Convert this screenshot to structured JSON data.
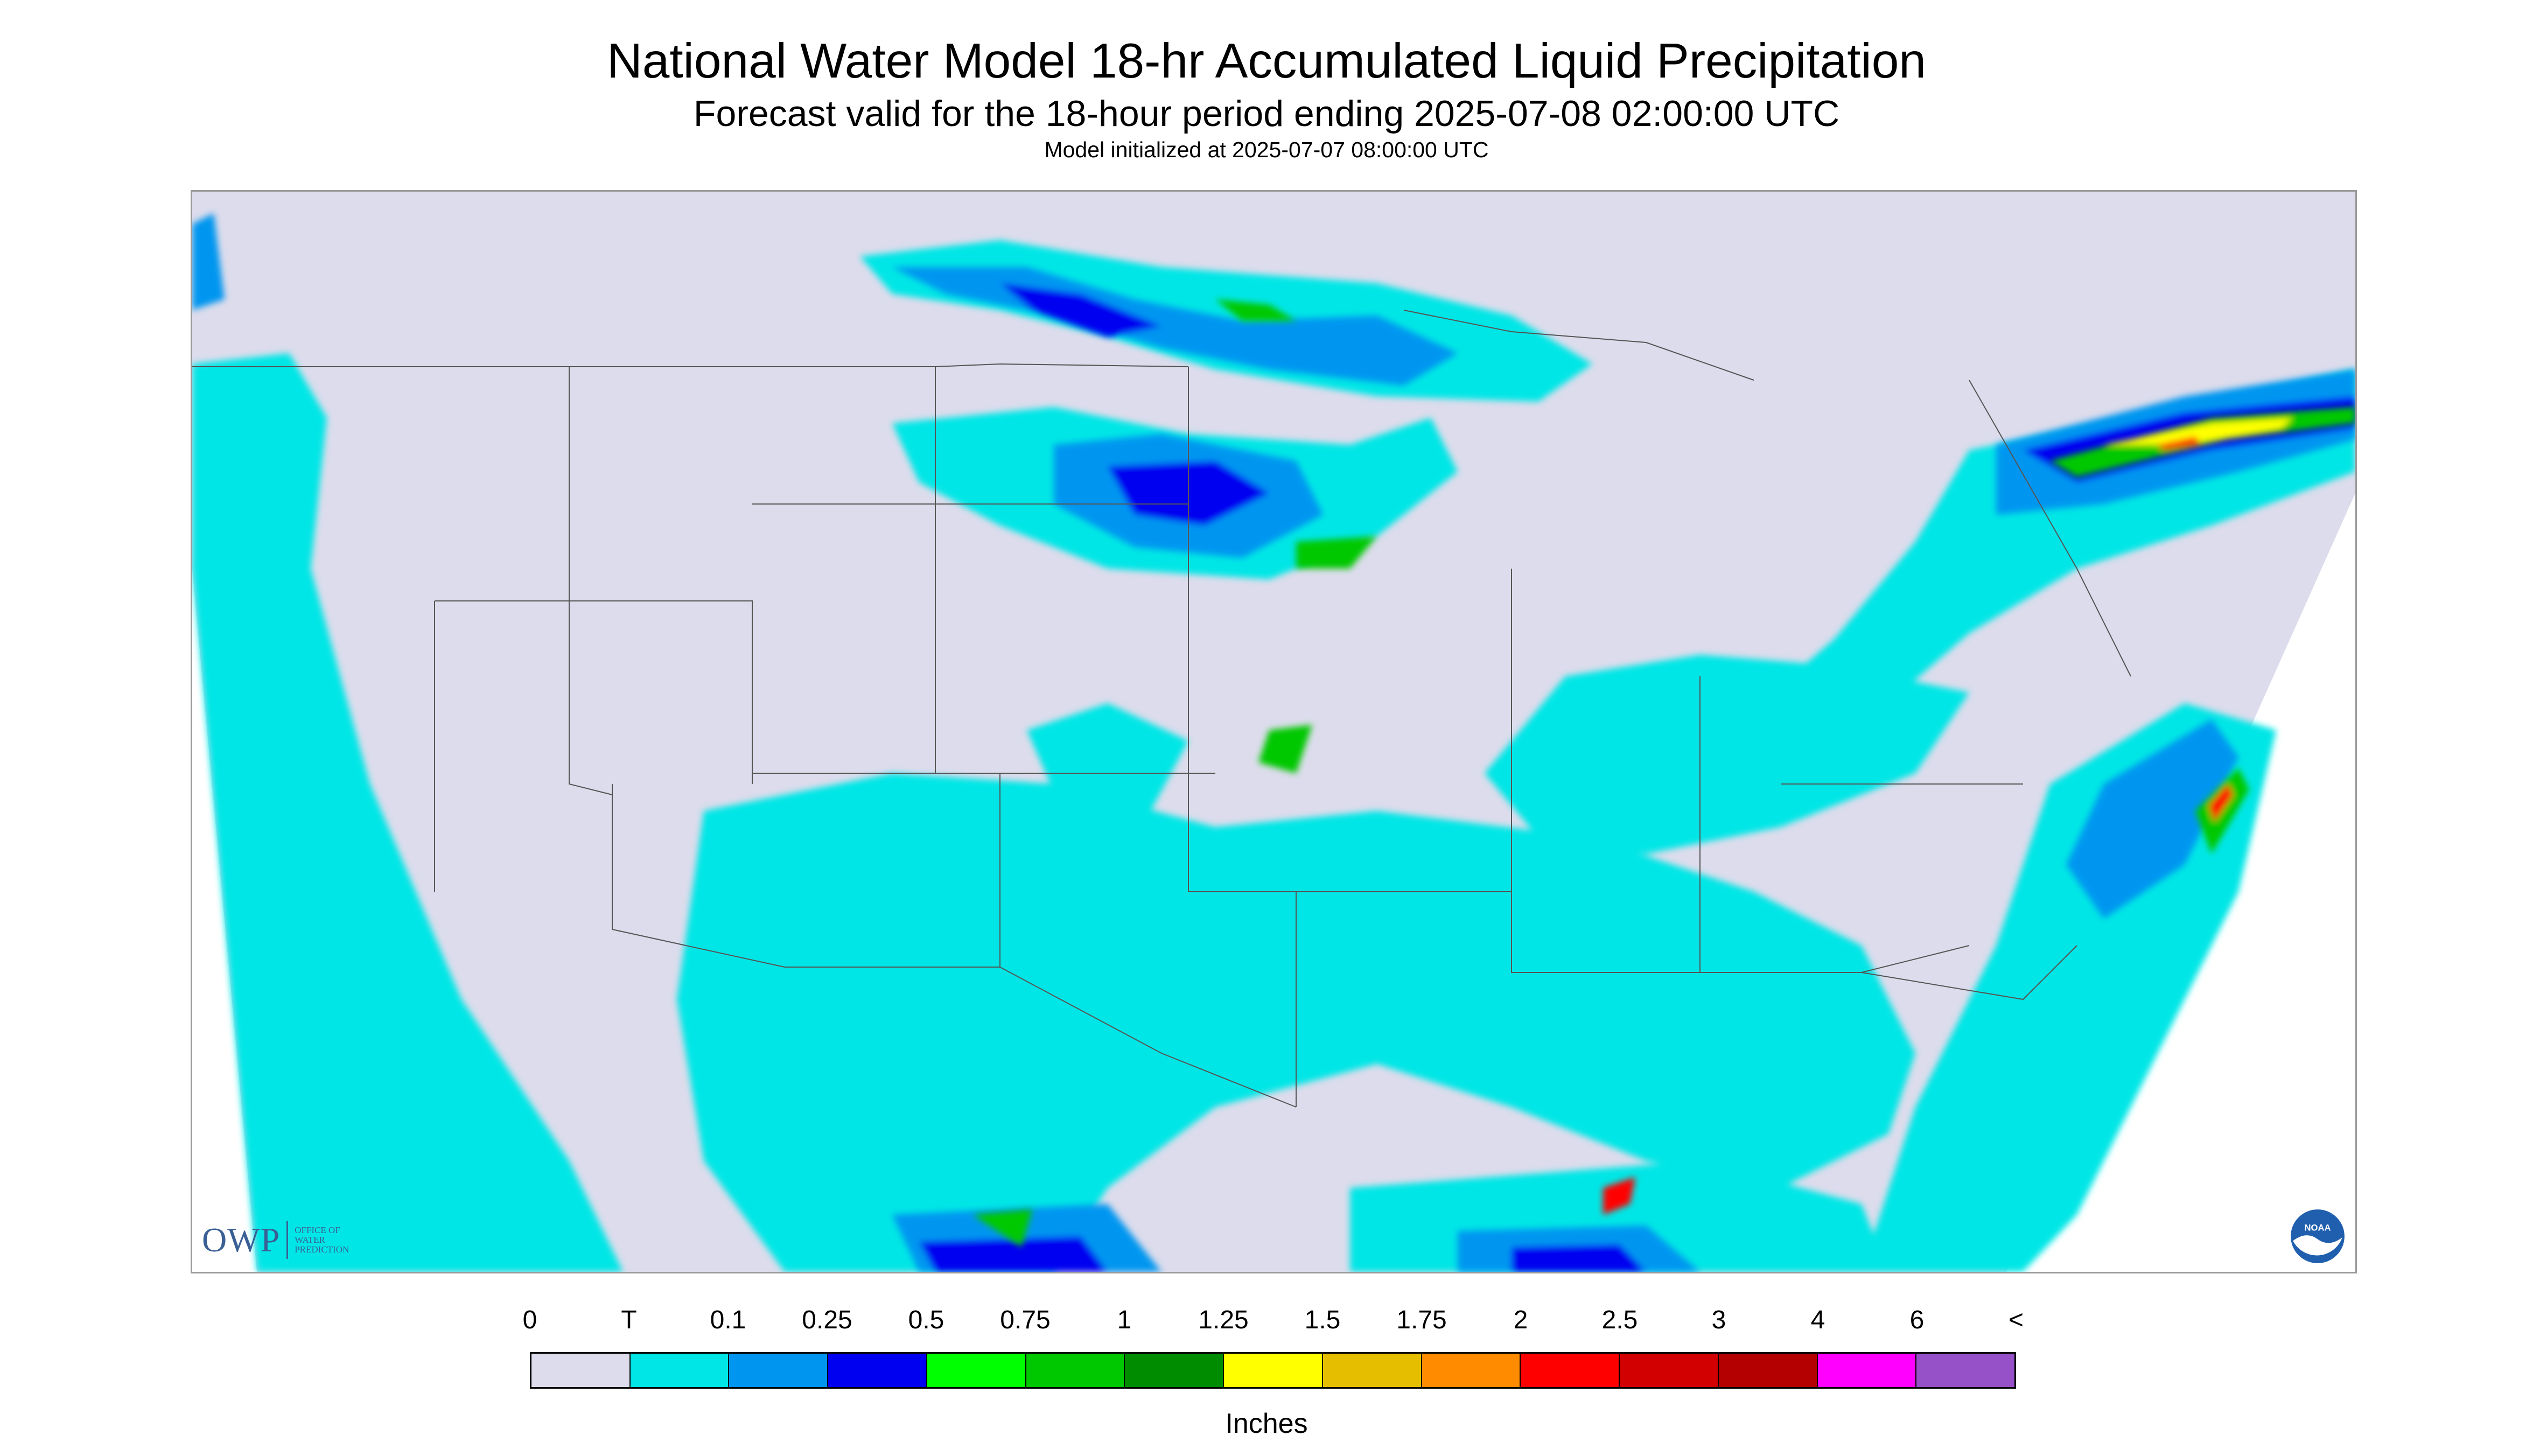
{
  "header": {
    "title": "National Water Model 18-hr Accumulated Liquid Precipitation",
    "subtitle": "Forecast valid for the 18-hour period ending 2025-07-08 02:00:00 UTC",
    "init_line": "Model initialized at 2025-07-07 08:00:00 UTC"
  },
  "map": {
    "background_color": "#dcdcec",
    "outside_color": "#ffffff",
    "logos": {
      "owp": {
        "text": "OWP",
        "subtitle": "OFFICE OF WATER PREDICTION",
        "color": "#3a5f95"
      },
      "noaa": {
        "text": "NOAA"
      }
    }
  },
  "legend": {
    "labels": [
      "0",
      "T",
      "0.1",
      "0.25",
      "0.5",
      "0.75",
      "1",
      "1.25",
      "1.5",
      "1.75",
      "2",
      "2.5",
      "3",
      "4",
      "6",
      "<"
    ],
    "colors": [
      "#dcdcec",
      "#00e6e6",
      "#0096f0",
      "#0000f0",
      "#00ff00",
      "#00c800",
      "#008c00",
      "#ffff00",
      "#e6be00",
      "#ff8c00",
      "#ff0000",
      "#d20000",
      "#b40000",
      "#ff00ff",
      "#9650c8"
    ],
    "units_label": "Inches"
  }
}
